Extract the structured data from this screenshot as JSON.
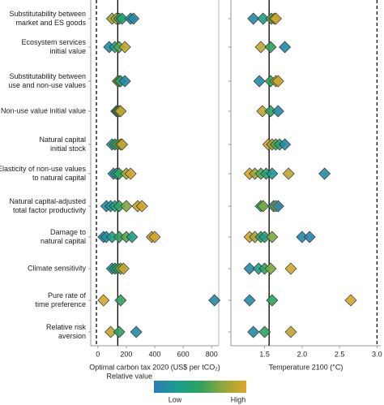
{
  "chart_data": [
    {
      "type": "strip",
      "categories": [
        [
          "Substitutability between",
          "market and ES goods"
        ],
        [
          "Ecosystem services",
          "initial value"
        ],
        [
          "Substitutability between",
          "use and non-use values"
        ],
        [
          "Non-use value initial value"
        ],
        [
          "Natural capital",
          "initial stock"
        ],
        [
          "Elasticity of non-use values",
          "to natural capital"
        ],
        [
          "Natural capital-adjusted",
          "total factor productivity"
        ],
        [
          "Damage to",
          "natural capital"
        ],
        [
          "Climate sensitivity"
        ],
        [
          "Pure rate of",
          "time preference"
        ],
        [
          "Relative risk",
          "aversion"
        ]
      ],
      "xlabel": "Optimal carbon tax 2020 (US$ per tCO₂)",
      "xlim": [
        -50,
        850
      ],
      "xticks": [
        0,
        200,
        400,
        600,
        800
      ],
      "vlines": [
        {
          "value": -10,
          "style": "dashed"
        },
        {
          "value": 140,
          "style": "solid"
        }
      ],
      "values": [
        [
          100,
          130,
          150,
          170,
          230,
          250
        ],
        [
          80,
          120,
          150,
          190
        ],
        [
          140,
          150,
          160,
          190
        ],
        [
          130,
          140,
          150,
          160
        ],
        [
          100,
          120,
          140,
          160,
          170
        ],
        [
          110,
          130,
          150,
          200,
          230
        ],
        [
          60,
          90,
          120,
          150,
          200,
          280,
          310
        ],
        [
          40,
          60,
          100,
          150,
          200,
          240,
          380,
          400
        ],
        [
          100,
          120,
          140,
          160,
          180
        ],
        [
          40,
          160,
          820
        ],
        [
          90,
          150,
          270
        ]
      ],
      "relative_values": [
        [
          0.8,
          0.9,
          0.5,
          0.4,
          0.2,
          0.1
        ],
        [
          0.1,
          0.3,
          0.6,
          0.9
        ],
        [
          0.9,
          0.6,
          0.4,
          0.1
        ],
        [
          0.3,
          0.5,
          0.7,
          0.9
        ],
        [
          0.2,
          0.4,
          0.6,
          0.8,
          0.9
        ],
        [
          0.1,
          0.3,
          0.5,
          0.8,
          0.95
        ],
        [
          0.1,
          0.2,
          0.3,
          0.5,
          0.7,
          0.9,
          0.95
        ],
        [
          0.05,
          0.15,
          0.3,
          0.5,
          0.6,
          0.3,
          0.9,
          0.95
        ],
        [
          0.1,
          0.3,
          0.5,
          0.7,
          0.9
        ],
        [
          0.95,
          0.5,
          0.1
        ],
        [
          0.9,
          0.5,
          0.1
        ]
      ],
      "legend": {
        "title": "Relative value",
        "low": "Low",
        "high": "High",
        "colors": [
          "#2c7bb6",
          "#1a9e8f",
          "#2ca25f",
          "#8fa83a",
          "#e0a526"
        ]
      }
    },
    {
      "type": "strip",
      "xlabel": "Temperature 2100 (°C)",
      "xlim": [
        1.05,
        3.05
      ],
      "xticks": [
        1.5,
        2.0,
        2.5,
        3.0
      ],
      "xtick_labels": [
        "1.5",
        "2.0",
        "2.5",
        "3.0"
      ],
      "vlines": [
        {
          "value": 1.56,
          "style": "solid"
        },
        {
          "value": 3.0,
          "style": "dashed"
        }
      ],
      "values": [
        [
          1.35,
          1.48,
          1.59,
          1.63,
          1.65
        ],
        [
          1.45,
          1.58,
          1.77
        ],
        [
          1.43,
          1.58,
          1.65,
          1.68
        ],
        [
          1.47,
          1.58,
          1.68
        ],
        [
          1.55,
          1.6,
          1.65,
          1.7,
          1.77
        ],
        [
          1.3,
          1.37,
          1.45,
          1.52,
          1.6,
          1.82,
          2.3
        ],
        [
          1.45,
          1.48,
          1.62,
          1.65,
          1.68
        ],
        [
          1.3,
          1.37,
          1.45,
          1.5,
          1.6,
          2.0,
          2.1
        ],
        [
          1.3,
          1.42,
          1.5,
          1.58,
          1.85
        ],
        [
          1.3,
          1.6,
          2.65
        ],
        [
          1.35,
          1.5,
          1.85
        ]
      ],
      "relative_values": [
        [
          0.1,
          0.3,
          0.6,
          0.8,
          0.95
        ],
        [
          0.9,
          0.5,
          0.1
        ],
        [
          0.1,
          0.5,
          0.8,
          0.95
        ],
        [
          0.9,
          0.5,
          0.1
        ],
        [
          0.95,
          0.8,
          0.6,
          0.4,
          0.1
        ],
        [
          0.95,
          0.8,
          0.6,
          0.4,
          0.2,
          0.9,
          0.1
        ],
        [
          0.5,
          0.7,
          0.3,
          0.9,
          0.1
        ],
        [
          0.95,
          0.8,
          0.5,
          0.3,
          0.7,
          0.1,
          0.05
        ],
        [
          0.1,
          0.3,
          0.5,
          0.7,
          0.95
        ],
        [
          0.1,
          0.5,
          0.95
        ],
        [
          0.1,
          0.5,
          0.9
        ]
      ]
    }
  ]
}
